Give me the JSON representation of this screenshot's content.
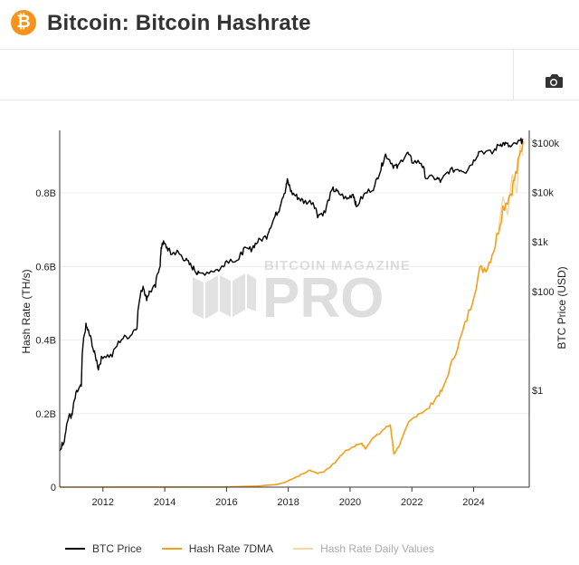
{
  "header": {
    "logo_symbol": "₿",
    "title": "Bitcoin: Bitcoin Hashrate"
  },
  "toolbar": {
    "camera_icon": "camera-icon"
  },
  "watermark": {
    "top": "BITCOIN MAGAZINE",
    "big": "PRO"
  },
  "legend": [
    {
      "label": "BTC Price",
      "color": "#000000"
    },
    {
      "label": "Hash Rate 7DMA",
      "color": "#f2a01c"
    },
    {
      "label": "Hash Rate Daily Values",
      "color": "#f5d9a0"
    }
  ],
  "chart_data": {
    "type": "line",
    "x_ticks": [
      "2012",
      "2014",
      "2016",
      "2018",
      "2020",
      "2022",
      "2024"
    ],
    "xlim": [
      2010.6,
      2025.8
    ],
    "y_left": {
      "label": "Hash Rate (TH/s)",
      "ticks": [
        "0",
        "0.2B",
        "0.4B",
        "0.6B",
        "0.8B"
      ],
      "ylim": [
        0,
        0.97
      ]
    },
    "y_right": {
      "label": "BTC Price (USD)",
      "scale": "log",
      "ticks": [
        "$1",
        "$100",
        "$1k",
        "$10k",
        "$100k"
      ],
      "ylim": [
        0.011,
        180000
      ]
    },
    "series": [
      {
        "name": "BTC Price",
        "axis": "right",
        "color": "#000000",
        "points": [
          [
            2010.6,
            0.06
          ],
          [
            2010.75,
            0.1
          ],
          [
            2010.9,
            0.3
          ],
          [
            2011.0,
            0.3
          ],
          [
            2011.15,
            0.9
          ],
          [
            2011.3,
            1.2
          ],
          [
            2011.45,
            20
          ],
          [
            2011.55,
            14
          ],
          [
            2011.7,
            6
          ],
          [
            2011.85,
            2.8
          ],
          [
            2012.0,
            5
          ],
          [
            2012.3,
            5
          ],
          [
            2012.6,
            11
          ],
          [
            2012.9,
            13
          ],
          [
            2013.1,
            20
          ],
          [
            2013.3,
            130
          ],
          [
            2013.4,
            70
          ],
          [
            2013.5,
            95
          ],
          [
            2013.7,
            125
          ],
          [
            2013.85,
            350
          ],
          [
            2013.92,
            1000
          ],
          [
            2014.05,
            800
          ],
          [
            2014.2,
            580
          ],
          [
            2014.4,
            620
          ],
          [
            2014.6,
            480
          ],
          [
            2014.8,
            350
          ],
          [
            2015.0,
            260
          ],
          [
            2015.1,
            220
          ],
          [
            2015.5,
            260
          ],
          [
            2015.8,
            280
          ],
          [
            2016.0,
            420
          ],
          [
            2016.4,
            450
          ],
          [
            2016.55,
            680
          ],
          [
            2016.8,
            720
          ],
          [
            2017.0,
            1000
          ],
          [
            2017.3,
            1300
          ],
          [
            2017.5,
            2600
          ],
          [
            2017.7,
            4500
          ],
          [
            2017.9,
            11000
          ],
          [
            2017.97,
            17000
          ],
          [
            2018.1,
            10000
          ],
          [
            2018.3,
            8000
          ],
          [
            2018.5,
            6500
          ],
          [
            2018.8,
            6400
          ],
          [
            2018.95,
            3500
          ],
          [
            2019.2,
            4000
          ],
          [
            2019.45,
            11500
          ],
          [
            2019.6,
            10000
          ],
          [
            2019.9,
            7200
          ],
          [
            2020.1,
            9500
          ],
          [
            2020.2,
            5000
          ],
          [
            2020.5,
            9500
          ],
          [
            2020.8,
            13000
          ],
          [
            2021.0,
            30000
          ],
          [
            2021.15,
            58000
          ],
          [
            2021.4,
            35000
          ],
          [
            2021.55,
            32000
          ],
          [
            2021.85,
            64000
          ],
          [
            2022.0,
            43000
          ],
          [
            2022.3,
            40000
          ],
          [
            2022.45,
            20000
          ],
          [
            2022.8,
            19500
          ],
          [
            2022.95,
            16500
          ],
          [
            2023.2,
            27000
          ],
          [
            2023.5,
            30000
          ],
          [
            2023.75,
            27000
          ],
          [
            2024.0,
            43000
          ],
          [
            2024.2,
            70000
          ],
          [
            2024.6,
            62000
          ],
          [
            2024.85,
            95000
          ],
          [
            2025.0,
            98000
          ],
          [
            2025.2,
            82000
          ],
          [
            2025.5,
            106000
          ],
          [
            2025.6,
            115000
          ]
        ]
      },
      {
        "name": "Hash Rate 7DMA",
        "axis": "left",
        "color": "#f2a01c",
        "points": [
          [
            2010.6,
            0.0
          ],
          [
            2016.0,
            0.0005
          ],
          [
            2017.0,
            0.003
          ],
          [
            2017.6,
            0.007
          ],
          [
            2017.9,
            0.013
          ],
          [
            2018.1,
            0.022
          ],
          [
            2018.4,
            0.033
          ],
          [
            2018.7,
            0.046
          ],
          [
            2018.95,
            0.038
          ],
          [
            2019.2,
            0.044
          ],
          [
            2019.5,
            0.066
          ],
          [
            2019.8,
            0.095
          ],
          [
            2020.1,
            0.11
          ],
          [
            2020.35,
            0.12
          ],
          [
            2020.5,
            0.105
          ],
          [
            2020.8,
            0.14
          ],
          [
            2021.0,
            0.15
          ],
          [
            2021.3,
            0.17
          ],
          [
            2021.42,
            0.09
          ],
          [
            2021.6,
            0.115
          ],
          [
            2021.9,
            0.175
          ],
          [
            2022.2,
            0.2
          ],
          [
            2022.5,
            0.21
          ],
          [
            2022.8,
            0.245
          ],
          [
            2023.0,
            0.265
          ],
          [
            2023.3,
            0.34
          ],
          [
            2023.6,
            0.41
          ],
          [
            2023.9,
            0.49
          ],
          [
            2024.2,
            0.59
          ],
          [
            2024.45,
            0.6
          ],
          [
            2024.7,
            0.66
          ],
          [
            2024.95,
            0.76
          ],
          [
            2025.2,
            0.8
          ],
          [
            2025.4,
            0.86
          ],
          [
            2025.6,
            0.94
          ]
        ]
      },
      {
        "name": "Hash Rate Daily Values",
        "axis": "left",
        "color": "#f5d9a0",
        "points": [
          [
            2024.8,
            0.7
          ],
          [
            2024.95,
            0.79
          ],
          [
            2025.1,
            0.74
          ],
          [
            2025.25,
            0.85
          ],
          [
            2025.4,
            0.8
          ],
          [
            2025.5,
            0.93
          ],
          [
            2025.6,
            0.9
          ]
        ]
      }
    ]
  }
}
